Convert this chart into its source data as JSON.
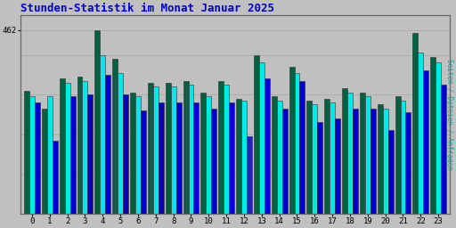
{
  "title": "Stunden-Statistik im Monat Januar 2025",
  "ylabel_right": "Seiten / Dateien / Anfragen",
  "hours": [
    0,
    1,
    2,
    3,
    4,
    5,
    6,
    7,
    8,
    9,
    10,
    11,
    12,
    13,
    14,
    15,
    16,
    17,
    18,
    19,
    20,
    21,
    22,
    23
  ],
  "seiten": [
    310,
    265,
    340,
    345,
    462,
    390,
    305,
    330,
    330,
    335,
    305,
    335,
    290,
    400,
    295,
    370,
    285,
    290,
    315,
    305,
    275,
    295,
    455,
    395
  ],
  "dateien": [
    295,
    295,
    330,
    335,
    400,
    355,
    295,
    320,
    320,
    325,
    295,
    325,
    285,
    380,
    285,
    355,
    275,
    280,
    305,
    295,
    265,
    285,
    405,
    380
  ],
  "anfragen": [
    280,
    185,
    295,
    300,
    350,
    300,
    260,
    280,
    280,
    280,
    265,
    280,
    195,
    340,
    265,
    335,
    230,
    240,
    265,
    265,
    210,
    255,
    360,
    325
  ],
  "color_seiten": "#006040",
  "color_dateien": "#00e8e8",
  "color_anfragen": "#0000cc",
  "background_color": "#c0c0c0",
  "title_color": "#0000cc",
  "ylabel_color": "#00aaaa",
  "ylim": [
    0,
    500
  ],
  "bar_width": 0.3,
  "figsize": [
    5.12,
    2.56
  ],
  "dpi": 100
}
